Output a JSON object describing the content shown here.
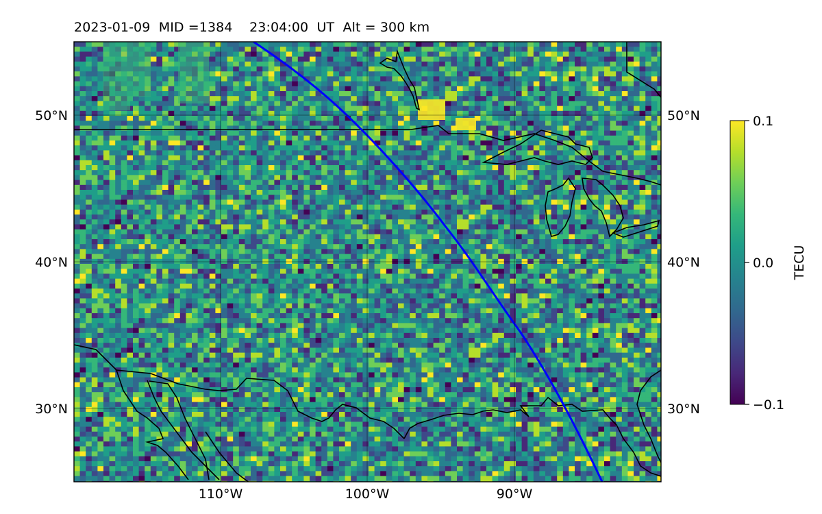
{
  "title": "2023-01-09  MID =1384    23:04:00  UT  Alt = 300 km",
  "colorbar": {
    "label": "TECU",
    "ticks": [
      "0.1",
      "0.0",
      "−0.1"
    ],
    "colormap": [
      "#440154",
      "#482878",
      "#3e4989",
      "#31688e",
      "#26828e",
      "#1f9e89",
      "#35b779",
      "#6ece58",
      "#b5de2b",
      "#fde725"
    ]
  },
  "map": {
    "lon_range": [
      -120,
      -80
    ],
    "lat_range": [
      25,
      55
    ],
    "lat_tick_labels": [
      "50°N",
      "40°N",
      "30°N"
    ],
    "lon_tick_labels": [
      "110°W",
      "100°W",
      "90°W"
    ],
    "grid": true,
    "background_field": "TEC perturbation, mostly near 0 with noise",
    "track_color": "#0000ff"
  }
}
